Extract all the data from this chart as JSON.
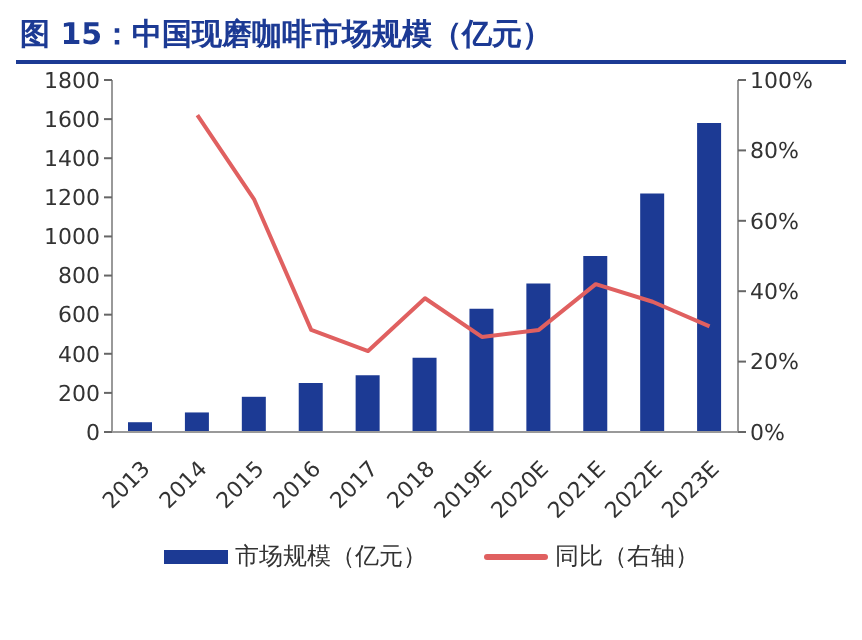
{
  "chart_data": {
    "type": "bar",
    "title": "图 15：中国现磨咖啡市场规模（亿元）",
    "categories": [
      "2013",
      "2014",
      "2015",
      "2016",
      "2017",
      "2018",
      "2019E",
      "2020E",
      "2021E",
      "2022E",
      "2023E"
    ],
    "series": [
      {
        "name": "市场规模（亿元）",
        "color": "#1c3a94",
        "values": [
          50,
          100,
          180,
          250,
          290,
          380,
          630,
          760,
          900,
          1220,
          1580
        ]
      },
      {
        "name": "同比（右轴）",
        "type": "line",
        "axis": "y2",
        "color": "#e06060",
        "values": [
          null,
          90,
          66,
          29,
          23,
          38,
          27,
          29,
          42,
          37,
          30
        ]
      }
    ],
    "ylim": [
      0,
      1800
    ],
    "yticks": [
      0,
      200,
      400,
      600,
      800,
      1000,
      1200,
      1400,
      1600,
      1800
    ],
    "y2lim": [
      0,
      100
    ],
    "y2ticks": [
      {
        "value": 0,
        "label": "0%"
      },
      {
        "value": 20,
        "label": "20%"
      },
      {
        "value": 40,
        "label": "40%"
      },
      {
        "value": 60,
        "label": "60%"
      },
      {
        "value": 80,
        "label": "80%"
      },
      {
        "value": 100,
        "label": "100%"
      }
    ],
    "legend": "bottom",
    "grid": false
  }
}
